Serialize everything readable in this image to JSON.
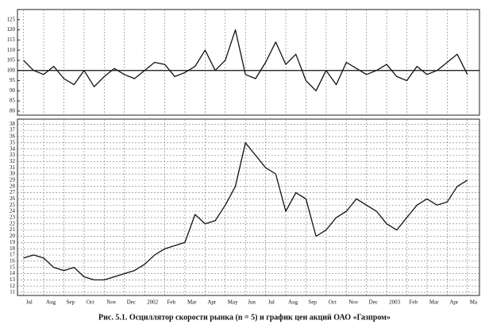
{
  "chart_data": [
    {
      "type": "line",
      "color": "#111",
      "x": [
        0,
        0.5,
        1,
        1.5,
        2,
        2.5,
        3,
        3.5,
        4,
        4.5,
        5,
        5.5,
        6,
        6.5,
        7,
        7.5,
        8,
        8.5,
        9,
        9.5,
        10,
        10.5,
        11,
        11.5,
        12,
        12.5,
        13,
        13.5,
        14,
        14.5,
        15,
        15.5,
        16,
        16.5,
        17,
        17.5,
        18,
        18.5,
        19,
        19.5,
        20,
        20.5,
        21,
        21.5,
        22
      ],
      "values": [
        105,
        100,
        98,
        102,
        96,
        93,
        100,
        92,
        97,
        101,
        98,
        96,
        100,
        104,
        103,
        97,
        99,
        102,
        110,
        100,
        105,
        120,
        98,
        96,
        104,
        114,
        103,
        108,
        95,
        90,
        100,
        93,
        104,
        101,
        98,
        100,
        103,
        97,
        95,
        102,
        98,
        100,
        104,
        108,
        98
      ],
      "xlim": [
        -0.3,
        22.6
      ],
      "ylim": [
        78,
        130
      ],
      "yticks": [
        80,
        85,
        90,
        95,
        100,
        105,
        110,
        115,
        120,
        125
      ],
      "hline": 100,
      "grid": "x"
    },
    {
      "type": "line",
      "color": "#111",
      "x": [
        0,
        0.5,
        1,
        1.5,
        2,
        2.5,
        3,
        3.5,
        4,
        4.5,
        5,
        5.5,
        6,
        6.5,
        7,
        7.5,
        8,
        8.5,
        9,
        9.5,
        10,
        10.5,
        11,
        11.5,
        12,
        12.5,
        13,
        13.5,
        14,
        14.5,
        15,
        15.5,
        16,
        16.5,
        17,
        17.5,
        18,
        18.5,
        19,
        19.5,
        20,
        20.5,
        21,
        21.5,
        22
      ],
      "values": [
        16.5,
        17,
        16.5,
        15,
        14.5,
        15,
        13.5,
        13,
        13,
        13.5,
        14,
        14.5,
        15.5,
        17,
        18,
        18.5,
        19,
        23.5,
        22,
        22.5,
        25,
        28,
        35,
        33,
        31,
        30,
        24,
        27,
        26,
        20,
        21,
        23,
        24,
        26,
        25,
        24,
        22,
        21,
        23,
        25,
        26,
        25,
        25.5,
        28,
        29
      ],
      "xlim": [
        -0.3,
        22.6
      ],
      "ylim": [
        10.5,
        38.8
      ],
      "yticks": [
        11,
        12,
        13,
        14,
        15,
        16,
        17,
        18,
        19,
        20,
        21,
        22,
        23,
        24,
        25,
        26,
        27,
        28,
        29,
        30,
        31,
        32,
        33,
        34,
        35,
        36,
        37,
        38
      ],
      "xticks": [
        {
          "value": 0,
          "label": "Jul"
        },
        {
          "value": 1,
          "label": "Aug"
        },
        {
          "value": 2,
          "label": "Sep"
        },
        {
          "value": 3,
          "label": "Oct"
        },
        {
          "value": 4,
          "label": "Nov"
        },
        {
          "value": 5,
          "label": "Dec"
        },
        {
          "value": 6,
          "label": "2002"
        },
        {
          "value": 7,
          "label": "Feb"
        },
        {
          "value": 8,
          "label": "Mar"
        },
        {
          "value": 9,
          "label": "Apr"
        },
        {
          "value": 10,
          "label": "May"
        },
        {
          "value": 11,
          "label": "Jun"
        },
        {
          "value": 12,
          "label": "Jul"
        },
        {
          "value": 13,
          "label": "Aug"
        },
        {
          "value": 14,
          "label": "Sep"
        },
        {
          "value": 15,
          "label": "Oct"
        },
        {
          "value": 16,
          "label": "Nov"
        },
        {
          "value": 17,
          "label": "Dec"
        },
        {
          "value": 18,
          "label": "2003"
        },
        {
          "value": 19,
          "label": "Feb"
        },
        {
          "value": 20,
          "label": "Mar"
        },
        {
          "value": 21,
          "label": "Apr"
        },
        {
          "value": 22,
          "label": "Ma"
        }
      ],
      "grid": "both"
    }
  ],
  "caption": "Рис. 5.1. Осциллятор скорости рынка (n = 5) и график цен акций ОАО «Газпром»"
}
